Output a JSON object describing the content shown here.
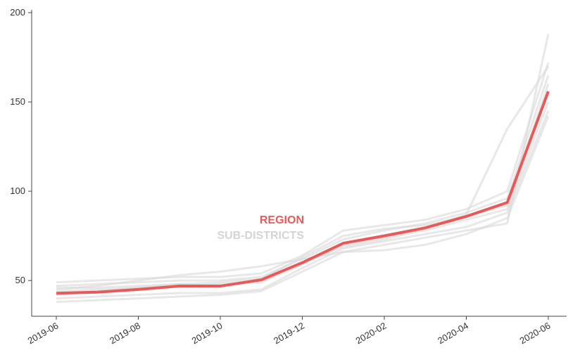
{
  "chart_data": {
    "type": "line",
    "categories": [
      "2019-06",
      null,
      "2019-08",
      null,
      "2019-10",
      null,
      "2019-12",
      null,
      "2020-02",
      null,
      "2020-04",
      null,
      "2020-06"
    ],
    "ylim": [
      30,
      200
    ],
    "yticks": [
      50,
      100,
      150,
      200
    ],
    "series": [
      {
        "name": "SUB-DISTRICTS",
        "color": "#d9d9d9",
        "lines": [
          [
            40,
            41,
            42,
            43,
            43,
            45,
            57,
            68,
            72,
            76,
            80,
            88,
            145
          ],
          [
            47,
            48,
            49,
            50,
            50,
            52,
            62,
            73,
            78,
            82,
            88,
            96,
            165
          ],
          [
            44,
            45,
            46,
            47,
            48,
            49,
            59,
            70,
            74,
            78,
            84,
            90,
            150
          ],
          [
            38,
            39,
            40,
            41,
            42,
            44,
            55,
            66,
            67,
            70,
            76,
            85,
            142
          ],
          [
            49,
            50,
            51,
            52,
            52,
            54,
            64,
            78,
            81,
            84,
            90,
            100,
            172
          ],
          [
            42,
            44,
            46,
            48,
            49,
            51,
            63,
            75,
            79,
            81,
            86,
            92,
            160
          ],
          [
            45,
            47,
            50,
            53,
            55,
            58,
            62,
            66,
            70,
            74,
            78,
            82,
            188
          ],
          [
            46,
            46,
            47,
            48,
            47,
            50,
            60,
            69,
            73,
            79,
            87,
            135,
            170
          ]
        ]
      },
      {
        "name": "REGION",
        "color": "#e8595a",
        "values": [
          42.9,
          43.5,
          45,
          46.9,
          46.9,
          50.4,
          60,
          70.9,
          75,
          79.5,
          85.9,
          93.7,
          155.9
        ]
      }
    ]
  }
}
